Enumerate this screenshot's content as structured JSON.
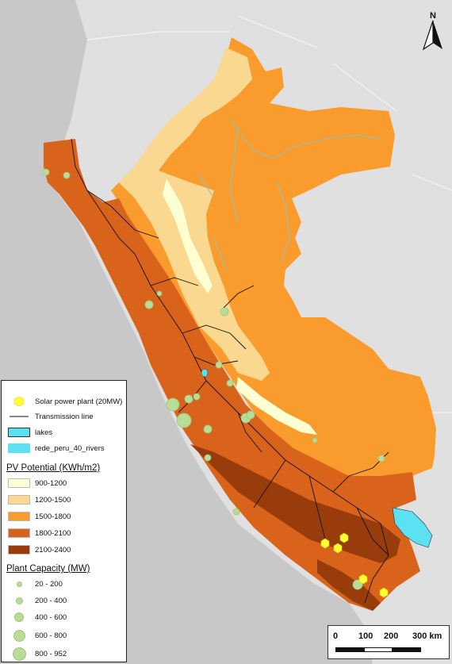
{
  "north_arrow": {
    "label": "N"
  },
  "legend": {
    "solar_plant": "Solar power plant (20MW)",
    "transmission": "Transmission line",
    "lakes": "lakes",
    "rivers": "rede_peru_40_rivers",
    "pv_title": "PV Potential (KWh/m2)",
    "pv_classes": [
      {
        "label": "900-1200",
        "color": "#ffffd4"
      },
      {
        "label": "1200-1500",
        "color": "#fbd890"
      },
      {
        "label": "1500-1800",
        "color": "#f99c2d"
      },
      {
        "label": "1800-2100",
        "color": "#d9631a"
      },
      {
        "label": "2100-2400",
        "color": "#993c0c"
      }
    ],
    "capacity_title": "Plant Capacity (MW)",
    "capacity_classes": [
      "20 - 200",
      "200 - 400",
      "400 - 600",
      "600 - 800",
      "800 - 952"
    ]
  },
  "scale_bar": {
    "labels": [
      "0",
      "100",
      "200",
      "300 km"
    ]
  },
  "colors": {
    "lake": "#5ce1f2",
    "river": "#7fc5cc",
    "solar": "#ffff33",
    "plant": "#b9dc97",
    "background": "#c8c8c8",
    "neighbor": "#e0e0e0"
  }
}
